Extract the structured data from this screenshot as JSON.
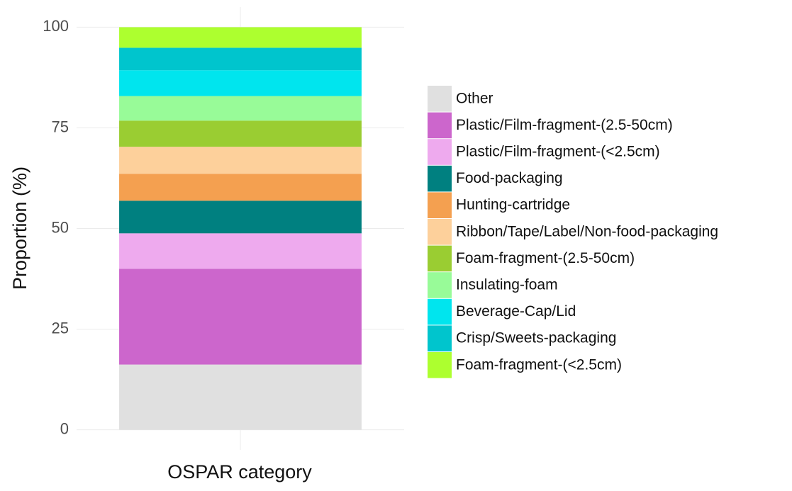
{
  "chart_data": {
    "type": "stacked-bar",
    "x_label": "OSPAR category",
    "y_label": "Proportion (%)",
    "categories": [
      null
    ],
    "series": [
      {
        "name": "Other",
        "color": "#e0e0e0",
        "values": [
          16.2
        ]
      },
      {
        "name": "Plastic/Film-fragment-(2.5-50cm)",
        "color": "#cc66cc",
        "values": [
          23.8
        ]
      },
      {
        "name": "Plastic/Film-fragment-(<2.5cm)",
        "color": "#eeaaee",
        "values": [
          8.8
        ]
      },
      {
        "name": "Food-packaging",
        "color": "#008080",
        "values": [
          8.1
        ]
      },
      {
        "name": "Hunting-cartridge",
        "color": "#f4a050",
        "values": [
          6.7
        ]
      },
      {
        "name": "Ribbon/Tape/Label/Non-food-packaging",
        "color": "#fdd09b",
        "values": [
          6.7
        ]
      },
      {
        "name": "Foam-fragment-(2.5-50cm)",
        "color": "#9acd32",
        "values": [
          6.5
        ]
      },
      {
        "name": "Insulating-foam",
        "color": "#98fb98",
        "values": [
          6.1
        ]
      },
      {
        "name": "Beverage-Cap/Lid",
        "color": "#00e5ee",
        "values": [
          6.4
        ]
      },
      {
        "name": "Crisp/Sweets-packaging",
        "color": "#00c5cd",
        "values": [
          5.6
        ]
      },
      {
        "name": "Foam-fragment-(<2.5cm)",
        "color": "#adff2f",
        "values": [
          5.1
        ]
      }
    ],
    "ylim": [
      -5,
      105
    ],
    "yticks": [
      0,
      25,
      50,
      75,
      100
    ],
    "grid": true,
    "legend": "right"
  }
}
